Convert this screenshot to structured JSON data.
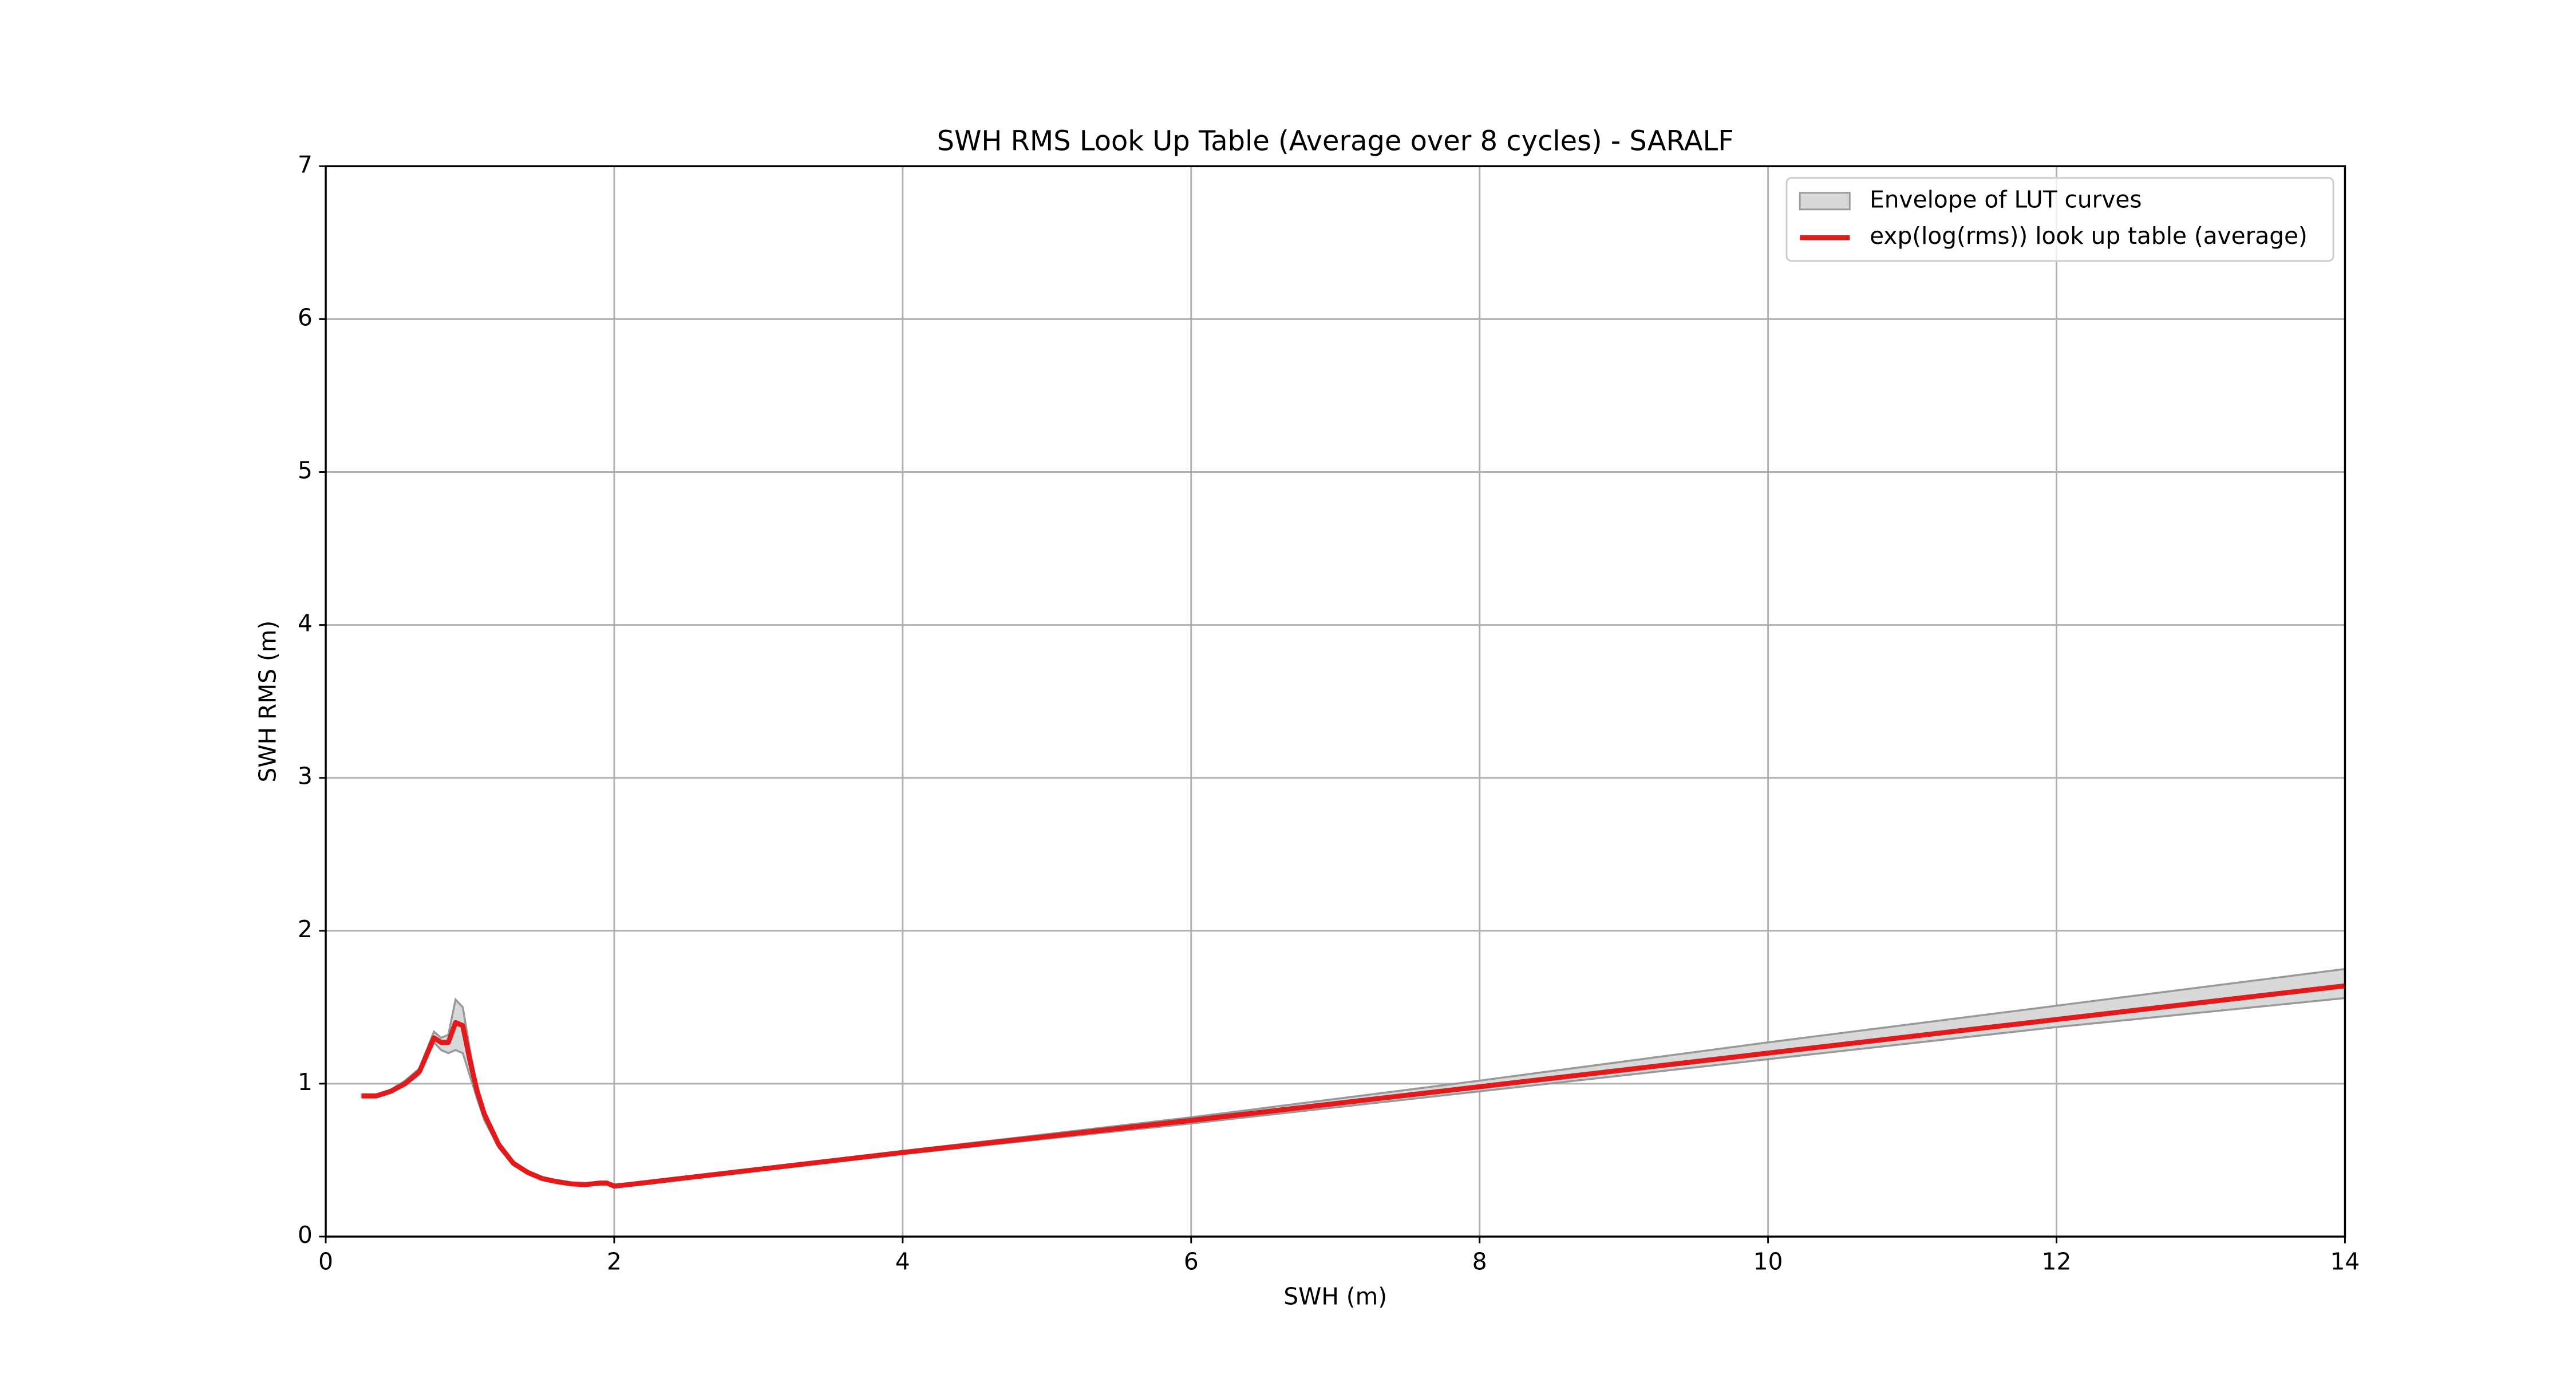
{
  "chart_data": {
    "type": "line",
    "title": "SWH RMS Look Up Table (Average over 8 cycles) - SARALF",
    "x_label": "SWH (m)",
    "y_label": "SWH RMS (m)",
    "x": [
      0.25,
      0.35,
      0.45,
      0.55,
      0.65,
      0.75,
      0.8,
      0.85,
      0.9,
      0.95,
      1.0,
      1.05,
      1.1,
      1.2,
      1.3,
      1.4,
      1.5,
      1.6,
      1.7,
      1.8,
      1.9,
      1.95,
      2.0,
      2.1,
      4,
      6,
      8,
      10,
      12,
      14
    ],
    "series": [
      {
        "name": "Envelope of LUT curves",
        "color": "#d9d9d9",
        "edge_color": "#999999",
        "upper": [
          0.93,
          0.93,
          0.96,
          1.02,
          1.1,
          1.34,
          1.3,
          1.32,
          1.55,
          1.5,
          1.22,
          0.98,
          0.82,
          0.62,
          0.49,
          0.43,
          0.39,
          0.37,
          0.35,
          0.345,
          0.355,
          0.355,
          0.335,
          0.345,
          0.56,
          0.78,
          1.02,
          1.27,
          1.51,
          1.75
        ],
        "lower": [
          0.91,
          0.91,
          0.94,
          0.99,
          1.06,
          1.27,
          1.22,
          1.2,
          1.22,
          1.2,
          1.05,
          0.9,
          0.76,
          0.58,
          0.47,
          0.41,
          0.37,
          0.35,
          0.34,
          0.335,
          0.345,
          0.345,
          0.325,
          0.335,
          0.54,
          0.74,
          0.95,
          1.16,
          1.37,
          1.56
        ]
      },
      {
        "name": "exp(log(rms)) look up table (average)",
        "color": "#e31a1c",
        "values": [
          0.92,
          0.92,
          0.95,
          1.0,
          1.08,
          1.3,
          1.27,
          1.27,
          1.4,
          1.38,
          1.15,
          0.95,
          0.8,
          0.6,
          0.48,
          0.42,
          0.38,
          0.36,
          0.345,
          0.34,
          0.35,
          0.35,
          0.33,
          0.34,
          0.55,
          0.76,
          0.98,
          1.2,
          1.42,
          1.64
        ]
      }
    ],
    "xlim": [
      0,
      14
    ],
    "xticks": [
      0,
      2,
      4,
      6,
      8,
      10,
      12,
      14
    ],
    "ylim": [
      0,
      7
    ],
    "yticks": [
      0,
      1,
      2,
      3,
      4,
      5,
      6,
      7
    ],
    "grid": true,
    "legend": "upper right"
  }
}
